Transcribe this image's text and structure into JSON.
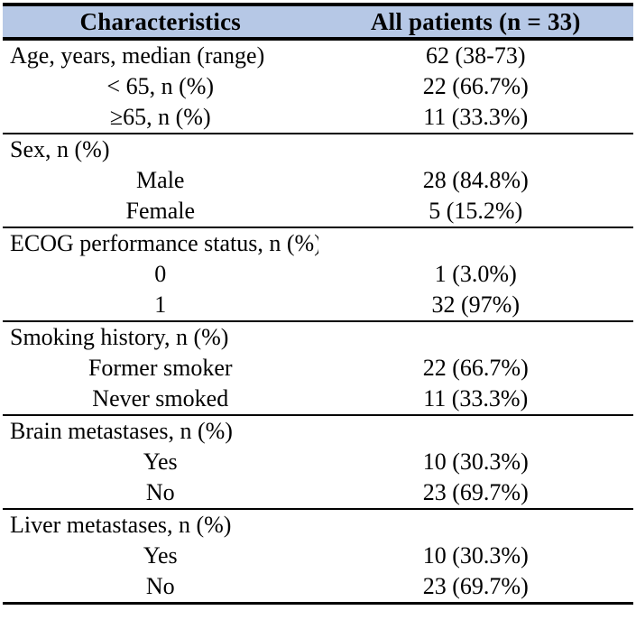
{
  "table": {
    "title_semantic": "Patient baseline characteristics",
    "header_bg": "#b6c8e6",
    "border_color": "#000000",
    "header": {
      "col1": "Characteristics",
      "col2": "All patients (n = 33)"
    },
    "sections": [
      {
        "rows": [
          {
            "label": "Age, years, median (range)",
            "value": "62 (38-73)",
            "indent": false
          },
          {
            "label": "< 65, n (%)",
            "value": "22 (66.7%)",
            "indent": true
          },
          {
            "label": "≥65, n (%)",
            "value": "11 (33.3%)",
            "indent": true
          }
        ]
      },
      {
        "rows": [
          {
            "label": "Sex, n (%)",
            "value": "",
            "indent": false
          },
          {
            "label": "Male",
            "value": "28 (84.8%)",
            "indent": true
          },
          {
            "label": "Female",
            "value": "5 (15.2%)",
            "indent": true
          }
        ]
      },
      {
        "rows": [
          {
            "label": "ECOG performance status, n (%)",
            "value": "",
            "indent": false
          },
          {
            "label": "0",
            "value": "1 (3.0%)",
            "indent": true
          },
          {
            "label": "1",
            "value": "32 (97%)",
            "indent": true
          }
        ]
      },
      {
        "rows": [
          {
            "label": "Smoking history, n (%)",
            "value": "",
            "indent": false
          },
          {
            "label": "Former smoker",
            "value": "22 (66.7%)",
            "indent": true
          },
          {
            "label": "Never smoked",
            "value": "11 (33.3%)",
            "indent": true
          }
        ]
      },
      {
        "rows": [
          {
            "label": "Brain metastases, n (%)",
            "value": "",
            "indent": false
          },
          {
            "label": "Yes",
            "value": "10 (30.3%)",
            "indent": true
          },
          {
            "label": "No",
            "value": "23 (69.7%)",
            "indent": true
          }
        ]
      },
      {
        "rows": [
          {
            "label": "Liver metastases, n (%)",
            "value": "",
            "indent": false
          },
          {
            "label": "Yes",
            "value": "10 (30.3%)",
            "indent": true
          },
          {
            "label": "No",
            "value": "23 (69.7%)",
            "indent": true
          }
        ]
      }
    ]
  }
}
